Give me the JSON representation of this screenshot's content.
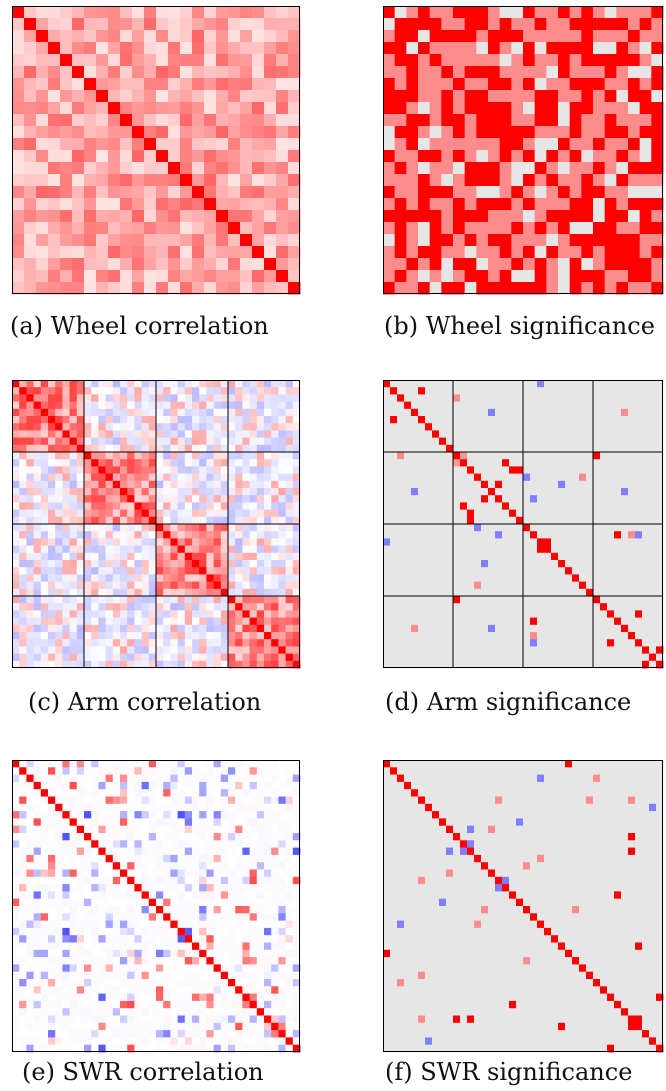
{
  "colors": {
    "positive": "#ff0000",
    "negative": "#0000ff",
    "zero": "#ffffff",
    "non_significant": "#e6e6e6",
    "block_border": "#000000"
  },
  "chart_data": [
    {
      "id": "a",
      "type": "heatmap",
      "caption": "(a) Wheel correlation",
      "n": 24,
      "diagonal": 1,
      "range": [
        -1,
        1
      ],
      "colormap": "blue-white-red",
      "generator": {
        "kind": "correlation",
        "seed": 11,
        "base": 0.35,
        "spread": 0.25,
        "sign_flip": 0.0,
        "blocks": 1,
        "sparsity": 0.0
      }
    },
    {
      "id": "b",
      "type": "heatmap",
      "caption": "(b) Wheel significance",
      "n": 24,
      "diagonal": 1,
      "range": [
        -1,
        1
      ],
      "colormap": "significance",
      "generator": {
        "kind": "significance",
        "seed": 12,
        "base": 0.85,
        "spread": 0.3,
        "sign_flip": 0.0,
        "blocks": 1,
        "sparsity": 0.12
      }
    },
    {
      "id": "c",
      "type": "heatmap",
      "caption": "(c) Arm correlation",
      "n": 40,
      "diagonal": 1,
      "range": [
        -1,
        1
      ],
      "colormap": "blue-white-red",
      "block_boundaries": [
        10,
        20,
        30
      ],
      "generator": {
        "kind": "correlation",
        "seed": 13,
        "base": 0.45,
        "spread": 0.3,
        "sign_flip": 0.45,
        "blocks": 4,
        "sparsity": 0.0
      }
    },
    {
      "id": "d",
      "type": "heatmap",
      "caption": "(d) Arm significance",
      "n": 40,
      "diagonal": 1,
      "range": [
        -1,
        1
      ],
      "colormap": "significance",
      "block_boundaries": [
        10,
        20,
        30
      ],
      "generator": {
        "kind": "significance",
        "seed": 14,
        "base": 0.7,
        "spread": 0.35,
        "sign_flip": 0.3,
        "blocks": 4,
        "sparsity": 0.93
      }
    },
    {
      "id": "e",
      "type": "heatmap",
      "caption": "(e) SWR correlation",
      "n": 40,
      "diagonal": 1,
      "range": [
        -1,
        1
      ],
      "colormap": "blue-white-red",
      "generator": {
        "kind": "correlation",
        "seed": 15,
        "base": 0.15,
        "spread": 0.55,
        "sign_flip": 0.5,
        "blocks": 1,
        "sparsity": 0.82
      }
    },
    {
      "id": "f",
      "type": "heatmap",
      "caption": "(f) SWR significance",
      "n": 40,
      "diagonal": 1,
      "range": [
        -1,
        1
      ],
      "colormap": "significance-sparse",
      "generator": {
        "kind": "significance",
        "seed": 16,
        "base": 0.3,
        "spread": 0.3,
        "sign_flip": 0.3,
        "blocks": 1,
        "sparsity": 0.97
      }
    }
  ]
}
